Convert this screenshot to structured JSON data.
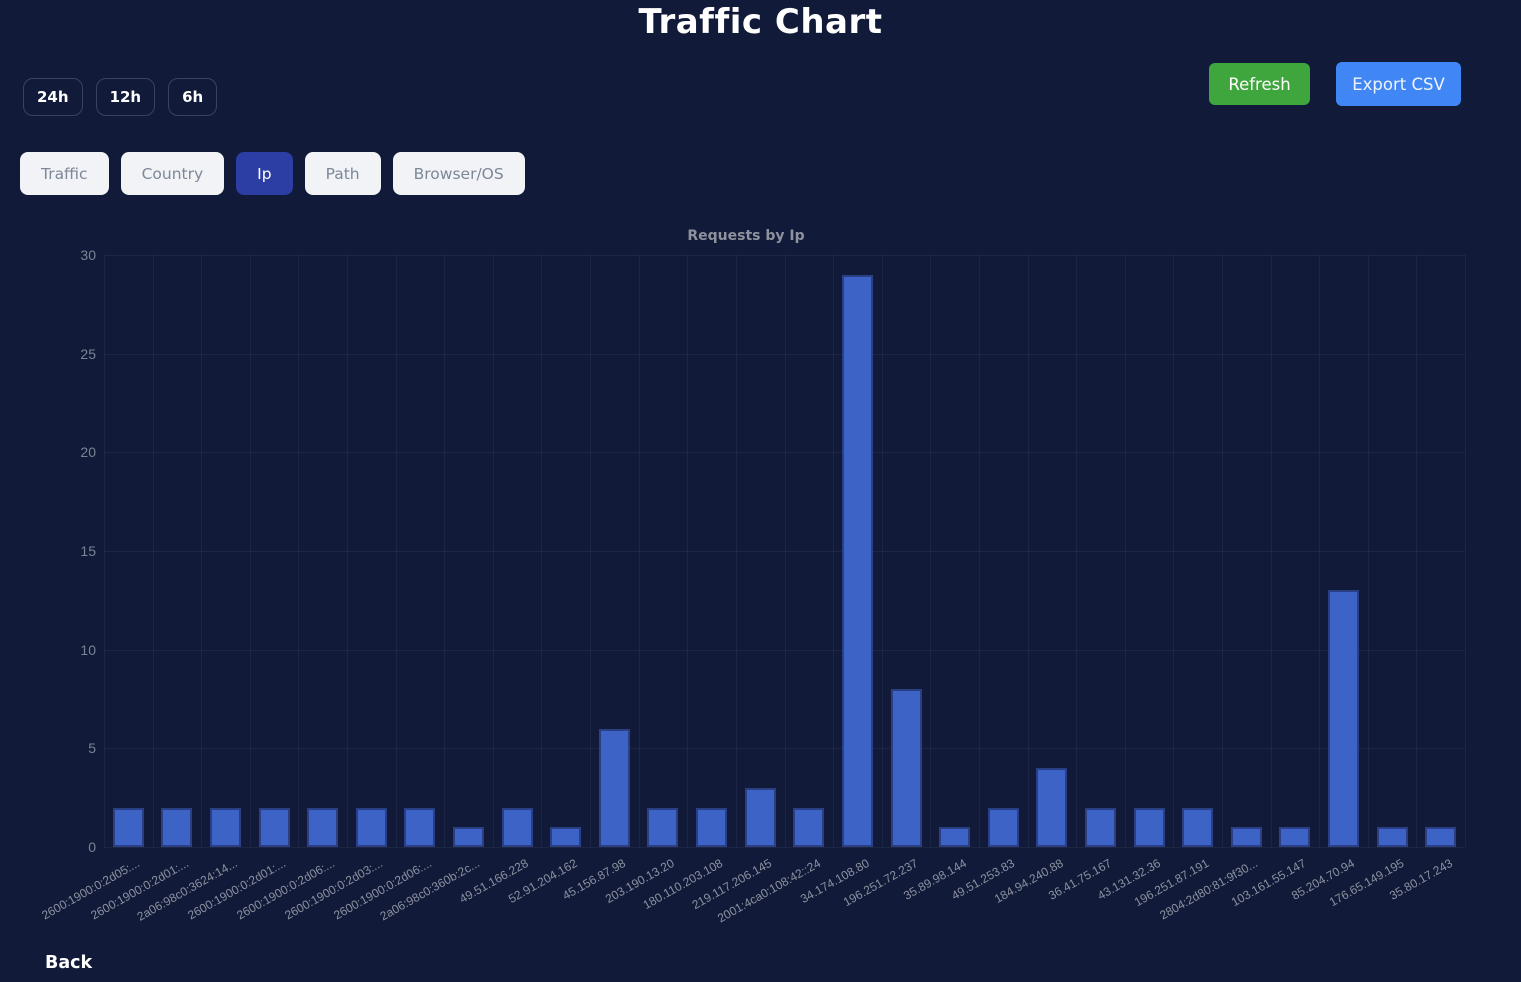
{
  "page": {
    "title": "Traffic Chart",
    "background": "#121a39",
    "back_label": "Back"
  },
  "controls": {
    "time_ranges": [
      "24h",
      "12h",
      "6h"
    ],
    "refresh_label": "Refresh",
    "refresh_color": "#3fa63e",
    "export_label": "Export CSV",
    "export_color": "#4186f5"
  },
  "tabs": {
    "active_color": "#2c3da4",
    "items": [
      {
        "label": "Traffic",
        "active": false
      },
      {
        "label": "Country",
        "active": false
      },
      {
        "label": "Ip",
        "active": true
      },
      {
        "label": "Path",
        "active": false
      },
      {
        "label": "Browser/OS",
        "active": false
      }
    ]
  },
  "chart_data": {
    "type": "bar",
    "title": "Requests by Ip",
    "xlabel": "",
    "ylabel": "",
    "ylim": [
      0,
      30
    ],
    "yticks": [
      0,
      5,
      10,
      15,
      20,
      25,
      30
    ],
    "grid": true,
    "legend_position": "none",
    "bar_color": "#3e63c6",
    "bar_border_color": "#2b3f85",
    "categories": [
      "2600:1900:0:2d05:...",
      "2600:1900:0:2d01:...",
      "2a06:98c0:3624:14...",
      "2600:1900:0:2d01:...",
      "2600:1900:0:2d06:...",
      "2600:1900:0:2d03:...",
      "2600:1900:0:2d06:...",
      "2a06:98c0:360b:2c...",
      "49.51.166.228",
      "52.91.204.162",
      "45.156.87.98",
      "203.190.13.20",
      "180.110.203.108",
      "219.117.206.145",
      "2001:4ca0:108:42::24",
      "34.174.108.80",
      "196.251.72.237",
      "35.89.98.144",
      "49.51.253.83",
      "184.94.240.88",
      "36.41.75.167",
      "43.131.32.36",
      "196.251.87.191",
      "2804:2d80:81:9f30...",
      "103.161.55.147",
      "85.204.70.94",
      "176.65.149.195",
      "35.80.17.243"
    ],
    "values": [
      2,
      2,
      2,
      2,
      2,
      2,
      2,
      1,
      2,
      1,
      6,
      2,
      2,
      3,
      2,
      29,
      8,
      1,
      2,
      4,
      2,
      2,
      2,
      1,
      1,
      13,
      1,
      1
    ]
  }
}
